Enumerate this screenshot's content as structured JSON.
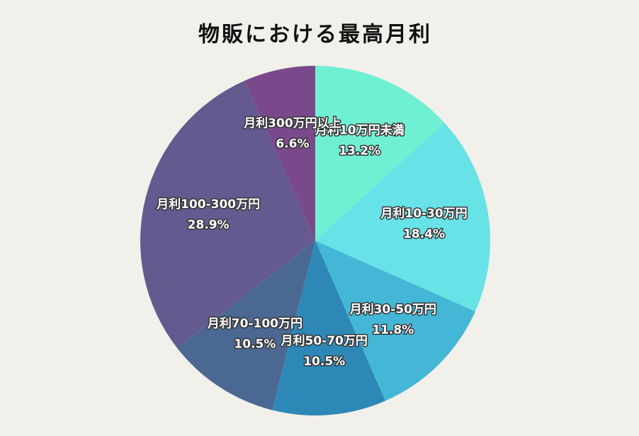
{
  "chart_data": {
    "type": "pie",
    "title": "物販における最高月利",
    "categories": [
      "月利10万円未満",
      "月利10-30万円",
      "月利30-50万円",
      "月利50-70万円",
      "月利70-100万円",
      "月利100-300万円",
      "月利300万円以上"
    ],
    "values": [
      13.2,
      18.4,
      11.8,
      10.5,
      10.5,
      28.9,
      6.6
    ],
    "value_labels": [
      "13.2%",
      "18.4%",
      "11.8%",
      "10.5%",
      "10.5%",
      "28.9%",
      "6.6%"
    ],
    "colors": [
      "#6ff0d3",
      "#67e2e7",
      "#45b7d6",
      "#2d88b7",
      "#4a6892",
      "#645a8f",
      "#7a498c"
    ]
  }
}
